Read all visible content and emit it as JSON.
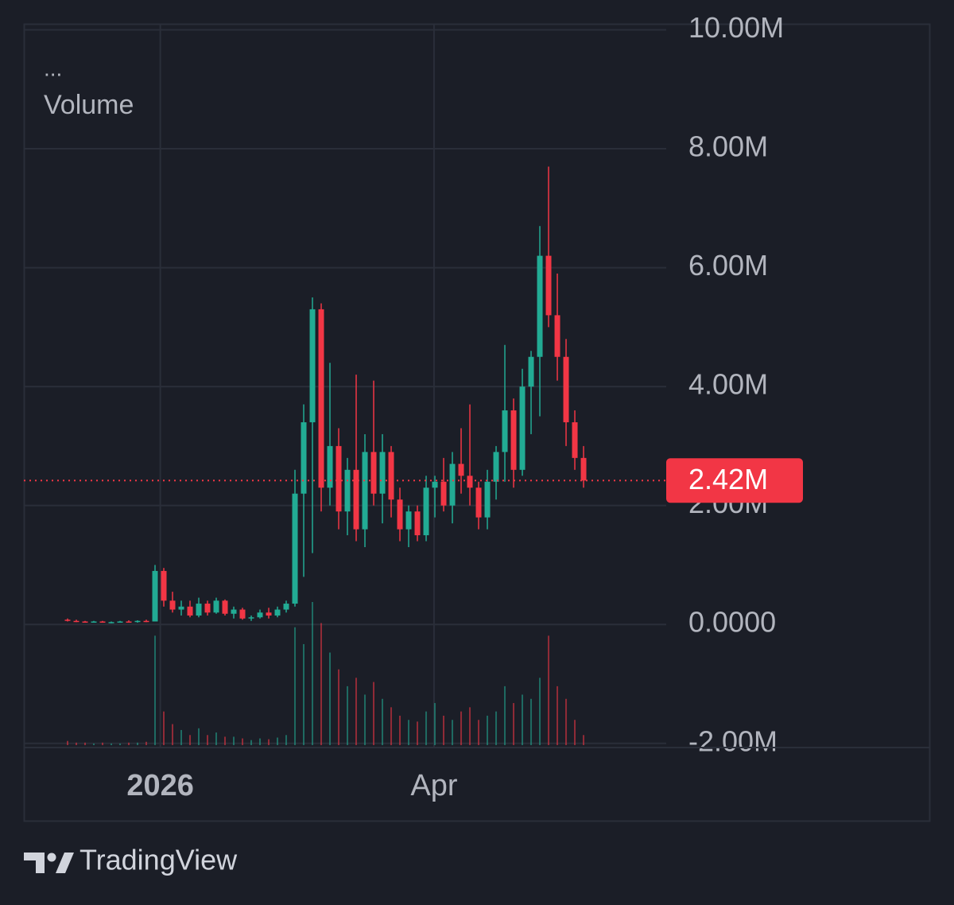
{
  "chart_data": {
    "type": "candlestick",
    "legend_dots": "...",
    "legend_title": "Volume",
    "up_color": "#22ab94",
    "down_color": "#f23645",
    "open": [
      0.08,
      0.06,
      0.05,
      0.04,
      0.05,
      0.03,
      0.04,
      0.05,
      0.04,
      0.06,
      0.05,
      0.9,
      0.4,
      0.25,
      0.3,
      0.15,
      0.35,
      0.2,
      0.4,
      0.18,
      0.25,
      0.1,
      0.12,
      0.2,
      0.15,
      0.25,
      0.35,
      2.2,
      3.4,
      5.3,
      2.3,
      3.0,
      1.9,
      2.6,
      1.6,
      2.9,
      2.2,
      2.9,
      2.1,
      1.6,
      1.9,
      1.5,
      2.3,
      2.4,
      2.0,
      2.7,
      2.5,
      2.3,
      1.8,
      2.4,
      2.9,
      3.6,
      2.6,
      4.0,
      4.5,
      6.2,
      5.2,
      4.5,
      3.4,
      2.8
    ],
    "high": [
      0.1,
      0.08,
      0.06,
      0.06,
      0.06,
      0.05,
      0.06,
      0.07,
      0.07,
      0.08,
      1.0,
      0.95,
      0.55,
      0.4,
      0.4,
      0.45,
      0.4,
      0.45,
      0.42,
      0.3,
      0.28,
      0.15,
      0.25,
      0.28,
      0.3,
      0.4,
      2.6,
      3.7,
      5.5,
      5.4,
      4.4,
      3.3,
      2.8,
      4.2,
      3.2,
      4.1,
      3.2,
      3.0,
      2.3,
      2.0,
      2.0,
      2.5,
      2.5,
      2.8,
      2.9,
      3.3,
      3.7,
      2.4,
      2.6,
      3.0,
      4.7,
      3.8,
      4.3,
      4.6,
      6.7,
      7.7,
      5.9,
      4.8,
      3.6,
      3.0
    ],
    "low": [
      0.05,
      0.04,
      0.03,
      0.03,
      0.03,
      0.02,
      0.03,
      0.03,
      0.03,
      0.04,
      0.05,
      0.3,
      0.2,
      0.15,
      0.12,
      0.12,
      0.15,
      0.18,
      0.15,
      0.1,
      0.08,
      0.06,
      0.1,
      0.1,
      0.12,
      0.2,
      0.3,
      0.8,
      1.2,
      1.9,
      2.0,
      1.6,
      1.5,
      1.4,
      1.3,
      2.0,
      1.7,
      1.8,
      1.4,
      1.3,
      1.4,
      1.4,
      1.8,
      1.9,
      1.7,
      2.2,
      2.0,
      1.6,
      1.6,
      2.1,
      2.4,
      2.3,
      2.5,
      3.2,
      3.5,
      5.0,
      4.1,
      3.0,
      2.6,
      2.3
    ],
    "close": [
      0.06,
      0.05,
      0.04,
      0.05,
      0.03,
      0.04,
      0.05,
      0.04,
      0.06,
      0.05,
      0.9,
      0.4,
      0.25,
      0.3,
      0.15,
      0.35,
      0.2,
      0.4,
      0.18,
      0.25,
      0.1,
      0.12,
      0.2,
      0.15,
      0.25,
      0.35,
      2.2,
      3.4,
      5.3,
      2.3,
      3.0,
      1.9,
      2.6,
      1.6,
      2.9,
      2.2,
      2.9,
      2.1,
      1.6,
      1.9,
      1.5,
      2.3,
      2.4,
      2.0,
      2.7,
      2.5,
      2.3,
      1.8,
      2.4,
      2.9,
      3.6,
      2.6,
      4.0,
      4.5,
      6.2,
      5.2,
      4.5,
      3.4,
      2.8,
      2.42
    ],
    "volume": [
      5,
      3,
      3,
      2,
      3,
      2,
      2,
      3,
      3,
      4,
      130,
      40,
      25,
      18,
      12,
      20,
      12,
      15,
      10,
      10,
      8,
      6,
      8,
      7,
      9,
      12,
      140,
      120,
      170,
      145,
      110,
      90,
      70,
      80,
      60,
      75,
      55,
      45,
      35,
      30,
      28,
      40,
      50,
      35,
      30,
      40,
      45,
      30,
      35,
      40,
      70,
      50,
      60,
      55,
      80,
      130,
      70,
      55,
      30,
      12
    ],
    "xlim": [
      -5,
      68.45
    ],
    "xticks": [
      {
        "value": 10.6,
        "label": "2026"
      },
      {
        "value": 41.9,
        "label": "Apr"
      }
    ],
    "ylim": [
      -2.07,
      10.1
    ],
    "yticks": [
      {
        "value": -2,
        "label": "-2.00M"
      },
      {
        "value": 0,
        "label": "0.0000"
      },
      {
        "value": 2,
        "label": "2.00M"
      },
      {
        "value": 4,
        "label": "4.00M"
      },
      {
        "value": 6,
        "label": "6.00M"
      },
      {
        "value": 8,
        "label": "8.00M"
      },
      {
        "value": 10,
        "label": "10.00M"
      }
    ],
    "last_value": {
      "value": 2.42,
      "label": "2.42M"
    },
    "grid": true,
    "brand": "TradingView"
  }
}
